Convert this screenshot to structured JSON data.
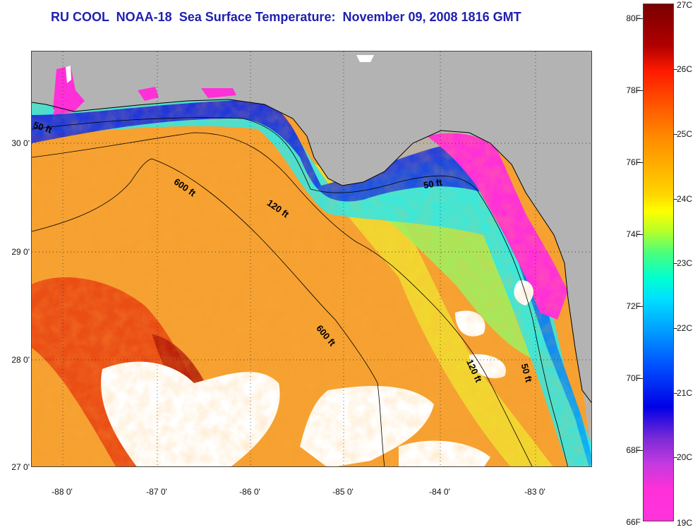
{
  "title": "RU COOL  NOAA-18  Sea Surface Temperature:  November 09, 2008 1816 GMT",
  "map": {
    "lat_labels": [
      "30 0'",
      "29 0'",
      "28 0'",
      "27 0'"
    ],
    "lon_labels": [
      "-88 0'",
      "-87 0'",
      "-86 0'",
      "-85 0'",
      "-84 0'",
      "-83 0'"
    ],
    "contour_labels": [
      "50 ft",
      "600 ft",
      "120 ft",
      "50 ft",
      "600 ft",
      "120 ft",
      "50 ft"
    ]
  },
  "colorbar": {
    "fahrenheit_labels": [
      "80F",
      "78F",
      "76F",
      "74F",
      "72F",
      "70F",
      "68F",
      "66F"
    ],
    "celsius_labels": [
      "27C",
      "26C",
      "25C",
      "24C",
      "23C",
      "22C",
      "21C",
      "20C",
      "19C"
    ]
  },
  "colors": {
    "title": "#1f1fb0",
    "land": "#b3b3b3",
    "cloud": "#ffffff"
  }
}
